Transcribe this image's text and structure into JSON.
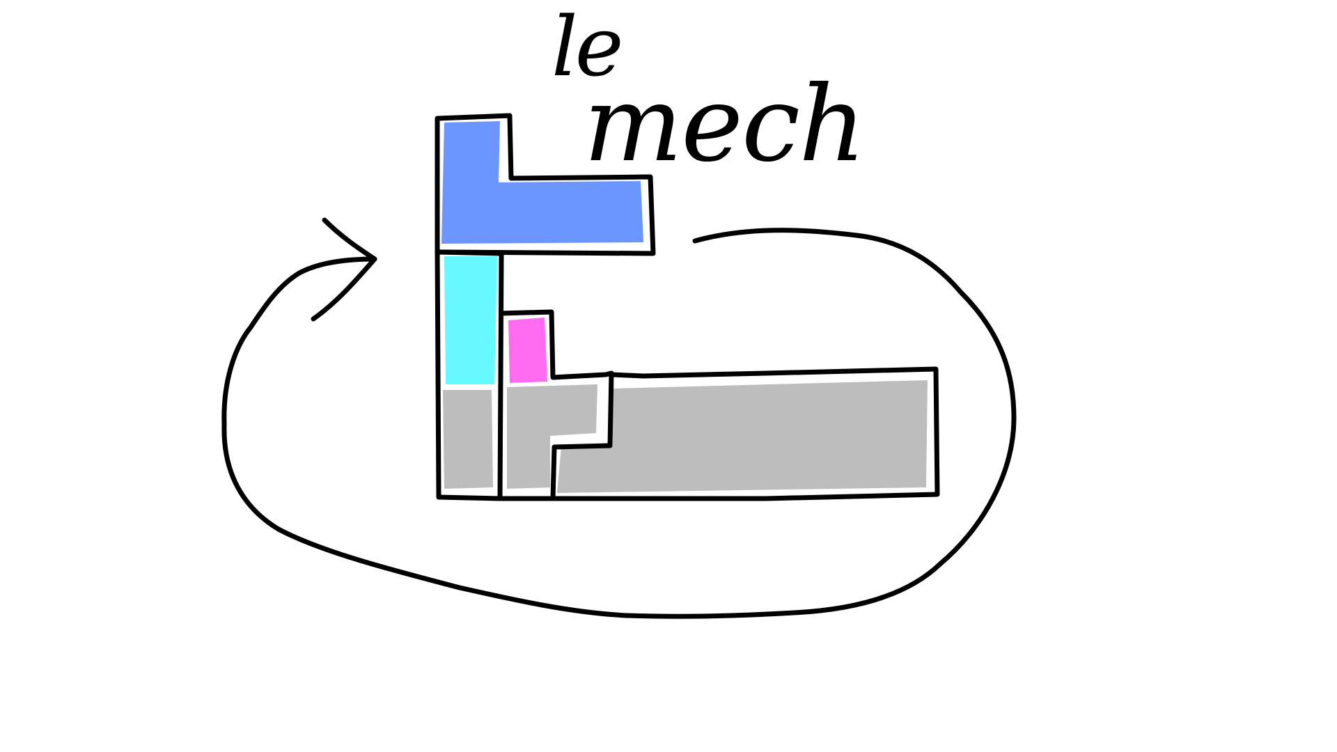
{
  "title": {
    "line1": "le",
    "line2": "mech"
  },
  "colors": {
    "background": "#ffffff",
    "outline": "#000000",
    "top_piece": "#6b96ff",
    "left_column_piece": "#66f9ff",
    "small_piece": "#ff6bf0",
    "base_pieces": "#bdbdbd"
  },
  "arrow": {
    "direction": "clockwise-loop-pointing-into-stack"
  }
}
